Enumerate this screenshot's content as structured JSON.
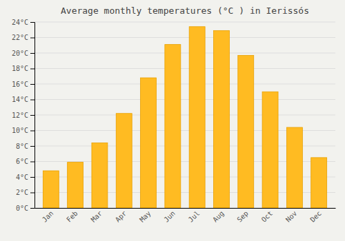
{
  "chart_data": {
    "type": "bar",
    "title": "Average monthly temperatures (°C ) in Ierissós",
    "categories": [
      "Jan",
      "Feb",
      "Mar",
      "Apr",
      "May",
      "Jun",
      "Jul",
      "Aug",
      "Sep",
      "Oct",
      "Nov",
      "Dec"
    ],
    "values": [
      4.8,
      5.9,
      8.4,
      12.2,
      16.8,
      21.1,
      23.4,
      22.9,
      19.7,
      15.0,
      10.4,
      6.5
    ],
    "color": "#FFBB22",
    "ylim": [
      0,
      24
    ],
    "yticks": [
      {
        "value": 0,
        "label": "0°C"
      },
      {
        "value": 2,
        "label": "2°C"
      },
      {
        "value": 4,
        "label": "4°C"
      },
      {
        "value": 6,
        "label": "6°C"
      },
      {
        "value": 8,
        "label": "8°C"
      },
      {
        "value": 10,
        "label": "10°C"
      },
      {
        "value": 12,
        "label": "12°C"
      },
      {
        "value": 14,
        "label": "14°C"
      },
      {
        "value": 16,
        "label": "16°C"
      },
      {
        "value": 18,
        "label": "18°C"
      },
      {
        "value": 20,
        "label": "20°C"
      },
      {
        "value": 22,
        "label": "22°C"
      },
      {
        "value": 24,
        "label": "24°C"
      }
    ],
    "grid": true
  }
}
